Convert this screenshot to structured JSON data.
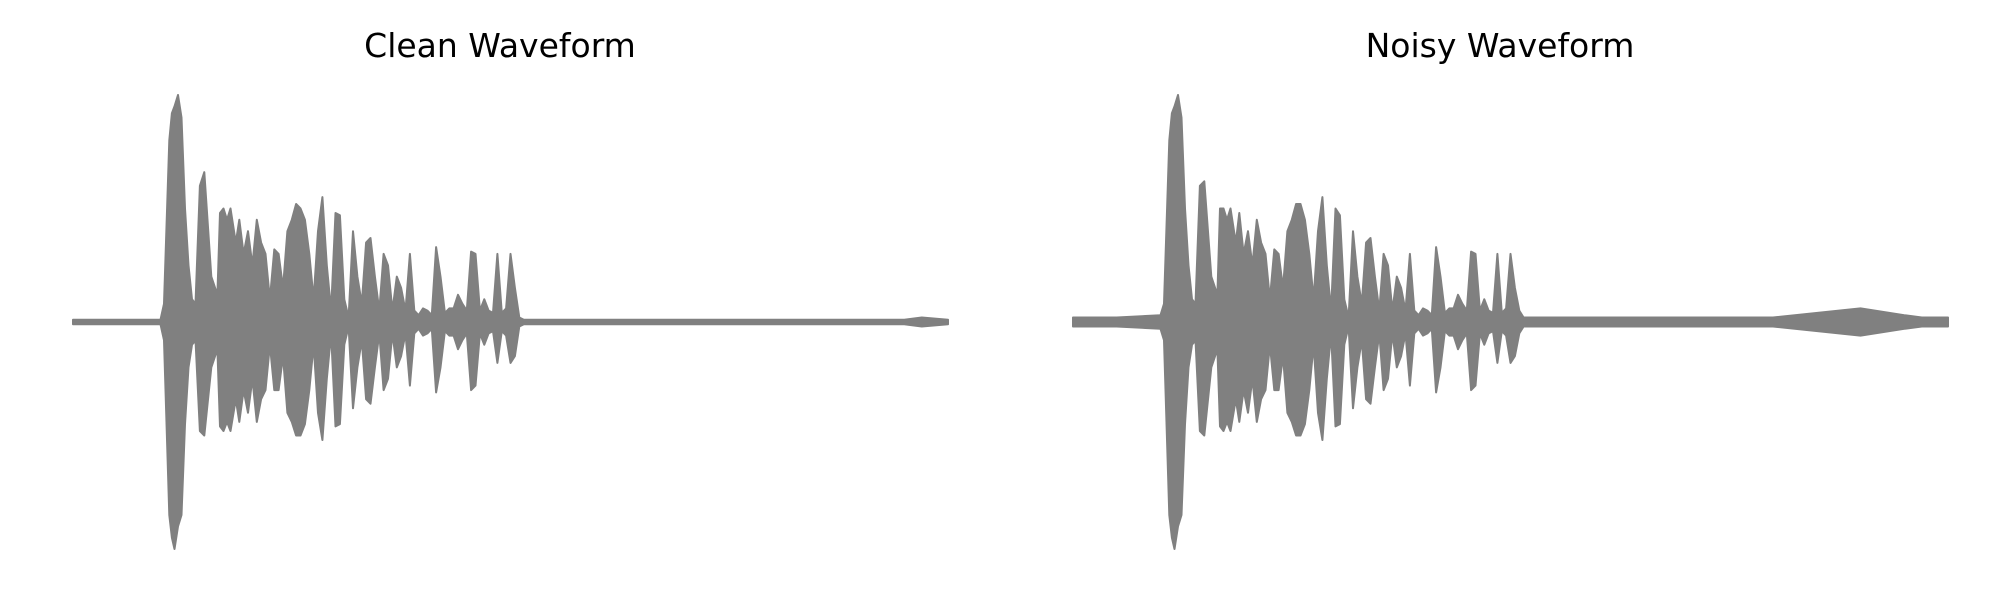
{
  "page": {
    "background": "#ffffff",
    "waveform_color": "#808080"
  },
  "chart_data": [
    {
      "type": "area",
      "title": "Clean Waveform",
      "xlabel": "",
      "ylabel": "",
      "grid": false,
      "axes_visible": false,
      "ylim": [
        -1,
        1
      ],
      "xlim": [
        0,
        1
      ],
      "x": [
        0.0,
        0.05,
        0.1,
        0.104,
        0.11,
        0.113,
        0.116,
        0.12,
        0.124,
        0.128,
        0.132,
        0.136,
        0.14,
        0.145,
        0.15,
        0.158,
        0.165,
        0.168,
        0.172,
        0.176,
        0.18,
        0.186,
        0.19,
        0.195,
        0.2,
        0.205,
        0.21,
        0.215,
        0.22,
        0.225,
        0.23,
        0.235,
        0.24,
        0.245,
        0.25,
        0.255,
        0.26,
        0.265,
        0.27,
        0.275,
        0.28,
        0.285,
        0.29,
        0.295,
        0.3,
        0.305,
        0.31,
        0.315,
        0.32,
        0.325,
        0.33,
        0.335,
        0.34,
        0.345,
        0.35,
        0.355,
        0.36,
        0.365,
        0.37,
        0.375,
        0.38,
        0.385,
        0.39,
        0.395,
        0.4,
        0.405,
        0.41,
        0.415,
        0.42,
        0.425,
        0.43,
        0.435,
        0.44,
        0.445,
        0.45,
        0.455,
        0.46,
        0.465,
        0.47,
        0.475,
        0.48,
        0.485,
        0.49,
        0.495,
        0.5,
        0.505,
        0.51,
        0.515,
        0.52,
        0.525,
        0.53,
        0.535,
        0.54,
        0.545,
        0.55,
        0.555,
        0.56,
        0.565,
        0.57,
        0.575,
        0.58,
        0.585,
        0.59,
        0.595,
        0.6,
        0.605,
        0.61,
        0.615,
        0.62,
        0.625,
        0.63,
        0.7,
        0.8,
        0.9,
        0.95,
        0.97,
        1.0
      ],
      "upper": [
        0.01,
        0.01,
        0.01,
        0.08,
        0.8,
        0.92,
        0.95,
        1.0,
        0.9,
        0.5,
        0.25,
        0.1,
        0.08,
        0.6,
        0.66,
        0.2,
        0.12,
        0.48,
        0.5,
        0.45,
        0.5,
        0.35,
        0.45,
        0.3,
        0.4,
        0.25,
        0.45,
        0.35,
        0.3,
        0.1,
        0.32,
        0.3,
        0.15,
        0.4,
        0.45,
        0.52,
        0.5,
        0.45,
        0.3,
        0.1,
        0.4,
        0.55,
        0.25,
        0.05,
        0.48,
        0.47,
        0.1,
        0.02,
        0.4,
        0.2,
        0.08,
        0.35,
        0.37,
        0.2,
        0.05,
        0.3,
        0.25,
        0.05,
        0.2,
        0.15,
        0.05,
        0.3,
        0.05,
        0.03,
        0.06,
        0.05,
        0.03,
        0.33,
        0.2,
        0.04,
        0.06,
        0.06,
        0.12,
        0.08,
        0.05,
        0.31,
        0.3,
        0.05,
        0.1,
        0.05,
        0.04,
        0.3,
        0.04,
        0.06,
        0.3,
        0.15,
        0.02,
        0.01,
        0.01,
        0.01,
        0.01,
        0.01,
        0.01,
        0.01,
        0.01,
        0.01,
        0.01,
        0.01,
        0.01,
        0.01,
        0.01,
        0.01,
        0.01,
        0.01,
        0.01,
        0.01,
        0.01,
        0.01,
        0.01,
        0.01,
        0.01,
        0.01,
        0.01,
        0.01,
        0.01,
        0.02,
        0.01
      ],
      "lower": [
        -0.01,
        -0.01,
        -0.01,
        -0.08,
        -0.85,
        -0.95,
        -1.0,
        -0.9,
        -0.85,
        -0.45,
        -0.2,
        -0.1,
        -0.08,
        -0.48,
        -0.5,
        -0.2,
        -0.12,
        -0.46,
        -0.48,
        -0.44,
        -0.48,
        -0.34,
        -0.44,
        -0.3,
        -0.4,
        -0.25,
        -0.44,
        -0.34,
        -0.3,
        -0.1,
        -0.3,
        -0.3,
        -0.15,
        -0.4,
        -0.44,
        -0.5,
        -0.5,
        -0.45,
        -0.3,
        -0.1,
        -0.4,
        -0.52,
        -0.25,
        -0.05,
        -0.46,
        -0.45,
        -0.1,
        -0.02,
        -0.38,
        -0.2,
        -0.08,
        -0.34,
        -0.36,
        -0.2,
        -0.05,
        -0.3,
        -0.25,
        -0.05,
        -0.2,
        -0.15,
        -0.05,
        -0.28,
        -0.05,
        -0.03,
        -0.06,
        -0.05,
        -0.03,
        -0.31,
        -0.2,
        -0.04,
        -0.06,
        -0.06,
        -0.12,
        -0.08,
        -0.05,
        -0.3,
        -0.28,
        -0.05,
        -0.1,
        -0.05,
        -0.04,
        -0.18,
        -0.04,
        -0.06,
        -0.18,
        -0.15,
        -0.02,
        -0.01,
        -0.01,
        -0.01,
        -0.01,
        -0.01,
        -0.01,
        -0.01,
        -0.01,
        -0.01,
        -0.01,
        -0.01,
        -0.01,
        -0.01,
        -0.01,
        -0.01,
        -0.01,
        -0.01,
        -0.01,
        -0.01,
        -0.01,
        -0.01,
        -0.01,
        -0.01,
        -0.01,
        -0.01,
        -0.01,
        -0.01,
        -0.01,
        -0.02,
        -0.01
      ]
    },
    {
      "type": "area",
      "title": "Noisy Waveform",
      "xlabel": "",
      "ylabel": "",
      "grid": false,
      "axes_visible": false,
      "ylim": [
        -1,
        1
      ],
      "xlim": [
        0,
        1
      ],
      "x": [
        0.0,
        0.05,
        0.1,
        0.104,
        0.11,
        0.113,
        0.116,
        0.12,
        0.124,
        0.128,
        0.132,
        0.136,
        0.14,
        0.145,
        0.15,
        0.158,
        0.165,
        0.168,
        0.172,
        0.176,
        0.18,
        0.186,
        0.19,
        0.195,
        0.2,
        0.205,
        0.21,
        0.215,
        0.22,
        0.225,
        0.23,
        0.235,
        0.24,
        0.245,
        0.25,
        0.255,
        0.26,
        0.265,
        0.27,
        0.275,
        0.28,
        0.285,
        0.29,
        0.295,
        0.3,
        0.305,
        0.31,
        0.315,
        0.32,
        0.325,
        0.33,
        0.335,
        0.34,
        0.345,
        0.35,
        0.355,
        0.36,
        0.365,
        0.37,
        0.375,
        0.38,
        0.385,
        0.39,
        0.395,
        0.4,
        0.405,
        0.41,
        0.415,
        0.42,
        0.425,
        0.43,
        0.435,
        0.44,
        0.445,
        0.45,
        0.455,
        0.46,
        0.465,
        0.47,
        0.475,
        0.48,
        0.485,
        0.49,
        0.495,
        0.5,
        0.505,
        0.51,
        0.515,
        0.52,
        0.525,
        0.53,
        0.535,
        0.54,
        0.545,
        0.55,
        0.555,
        0.56,
        0.565,
        0.57,
        0.575,
        0.58,
        0.585,
        0.59,
        0.595,
        0.6,
        0.605,
        0.61,
        0.615,
        0.62,
        0.625,
        0.63,
        0.7,
        0.8,
        0.9,
        0.95,
        0.97,
        1.0
      ],
      "upper": [
        0.02,
        0.02,
        0.03,
        0.08,
        0.8,
        0.92,
        0.95,
        1.0,
        0.9,
        0.5,
        0.25,
        0.1,
        0.08,
        0.6,
        0.62,
        0.2,
        0.12,
        0.5,
        0.5,
        0.45,
        0.5,
        0.35,
        0.48,
        0.3,
        0.4,
        0.25,
        0.45,
        0.35,
        0.3,
        0.1,
        0.32,
        0.3,
        0.15,
        0.4,
        0.45,
        0.52,
        0.52,
        0.45,
        0.3,
        0.1,
        0.4,
        0.55,
        0.25,
        0.05,
        0.5,
        0.47,
        0.1,
        0.02,
        0.4,
        0.2,
        0.08,
        0.35,
        0.37,
        0.2,
        0.05,
        0.3,
        0.25,
        0.05,
        0.2,
        0.15,
        0.05,
        0.3,
        0.05,
        0.03,
        0.06,
        0.05,
        0.03,
        0.33,
        0.2,
        0.04,
        0.06,
        0.06,
        0.12,
        0.08,
        0.05,
        0.31,
        0.3,
        0.05,
        0.1,
        0.05,
        0.04,
        0.3,
        0.04,
        0.06,
        0.3,
        0.15,
        0.05,
        0.02,
        0.02,
        0.02,
        0.02,
        0.02,
        0.02,
        0.02,
        0.02,
        0.02,
        0.02,
        0.02,
        0.02,
        0.02,
        0.02,
        0.02,
        0.02,
        0.02,
        0.02,
        0.02,
        0.02,
        0.02,
        0.02,
        0.02,
        0.02,
        0.02,
        0.02,
        0.06,
        0.03,
        0.02,
        0.02
      ],
      "lower": [
        -0.02,
        -0.02,
        -0.03,
        -0.08,
        -0.85,
        -0.95,
        -1.0,
        -0.9,
        -0.85,
        -0.45,
        -0.2,
        -0.1,
        -0.08,
        -0.48,
        -0.5,
        -0.2,
        -0.12,
        -0.46,
        -0.48,
        -0.44,
        -0.48,
        -0.34,
        -0.44,
        -0.3,
        -0.4,
        -0.25,
        -0.44,
        -0.34,
        -0.3,
        -0.1,
        -0.3,
        -0.3,
        -0.15,
        -0.4,
        -0.44,
        -0.5,
        -0.5,
        -0.45,
        -0.3,
        -0.1,
        -0.4,
        -0.52,
        -0.25,
        -0.05,
        -0.46,
        -0.45,
        -0.1,
        -0.02,
        -0.38,
        -0.2,
        -0.08,
        -0.34,
        -0.36,
        -0.2,
        -0.05,
        -0.3,
        -0.25,
        -0.05,
        -0.2,
        -0.15,
        -0.05,
        -0.28,
        -0.05,
        -0.03,
        -0.06,
        -0.05,
        -0.03,
        -0.31,
        -0.2,
        -0.04,
        -0.06,
        -0.06,
        -0.12,
        -0.08,
        -0.05,
        -0.3,
        -0.28,
        -0.05,
        -0.1,
        -0.05,
        -0.04,
        -0.18,
        -0.04,
        -0.06,
        -0.18,
        -0.15,
        -0.05,
        -0.02,
        -0.02,
        -0.02,
        -0.02,
        -0.02,
        -0.02,
        -0.02,
        -0.02,
        -0.02,
        -0.02,
        -0.02,
        -0.02,
        -0.02,
        -0.02,
        -0.02,
        -0.02,
        -0.02,
        -0.02,
        -0.02,
        -0.02,
        -0.02,
        -0.02,
        -0.02,
        -0.02,
        -0.02,
        -0.02,
        -0.06,
        -0.03,
        -0.02,
        -0.02
      ]
    }
  ]
}
